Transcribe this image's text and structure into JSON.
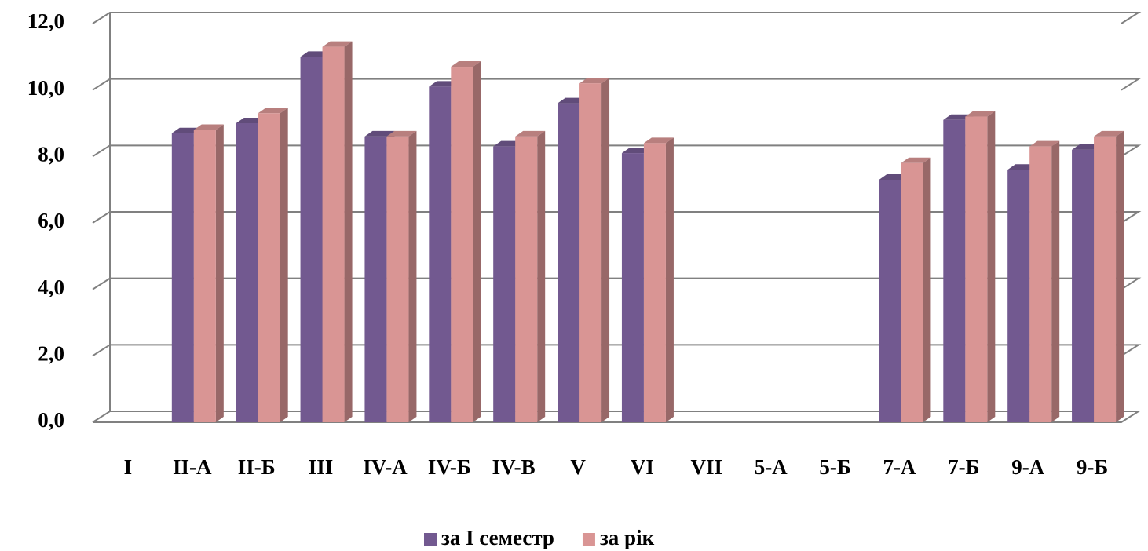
{
  "chart_data": {
    "type": "bar3d",
    "categories": [
      "I",
      "II-А",
      "II-Б",
      "III",
      "IV-А",
      "IV-Б",
      "IV-В",
      "V",
      "VI",
      "VII",
      "5-А",
      "5-Б",
      "7-А",
      "7-Б",
      "9-А",
      "9-Б"
    ],
    "series": [
      {
        "name": "за І семестр",
        "color": "#725990",
        "values": [
          null,
          8.7,
          9.0,
          11.0,
          8.6,
          10.1,
          8.3,
          9.6,
          8.1,
          null,
          null,
          null,
          7.3,
          9.1,
          7.6,
          8.2
        ]
      },
      {
        "name": "за рік",
        "color": "#d99594",
        "values": [
          null,
          8.8,
          9.3,
          11.3,
          8.6,
          10.7,
          8.6,
          10.2,
          8.4,
          null,
          null,
          null,
          7.8,
          9.2,
          8.3,
          8.6
        ]
      }
    ],
    "ylim": [
      0,
      12
    ],
    "yticks": [
      {
        "value": 0,
        "label": "0,0"
      },
      {
        "value": 2,
        "label": "2,0"
      },
      {
        "value": 4,
        "label": "4,0"
      },
      {
        "value": 6,
        "label": "6,0"
      },
      {
        "value": 8,
        "label": "8,0"
      },
      {
        "value": 10,
        "label": "10,0"
      },
      {
        "value": 12,
        "label": "12,0"
      }
    ],
    "grid": true,
    "legend": "bottom"
  }
}
